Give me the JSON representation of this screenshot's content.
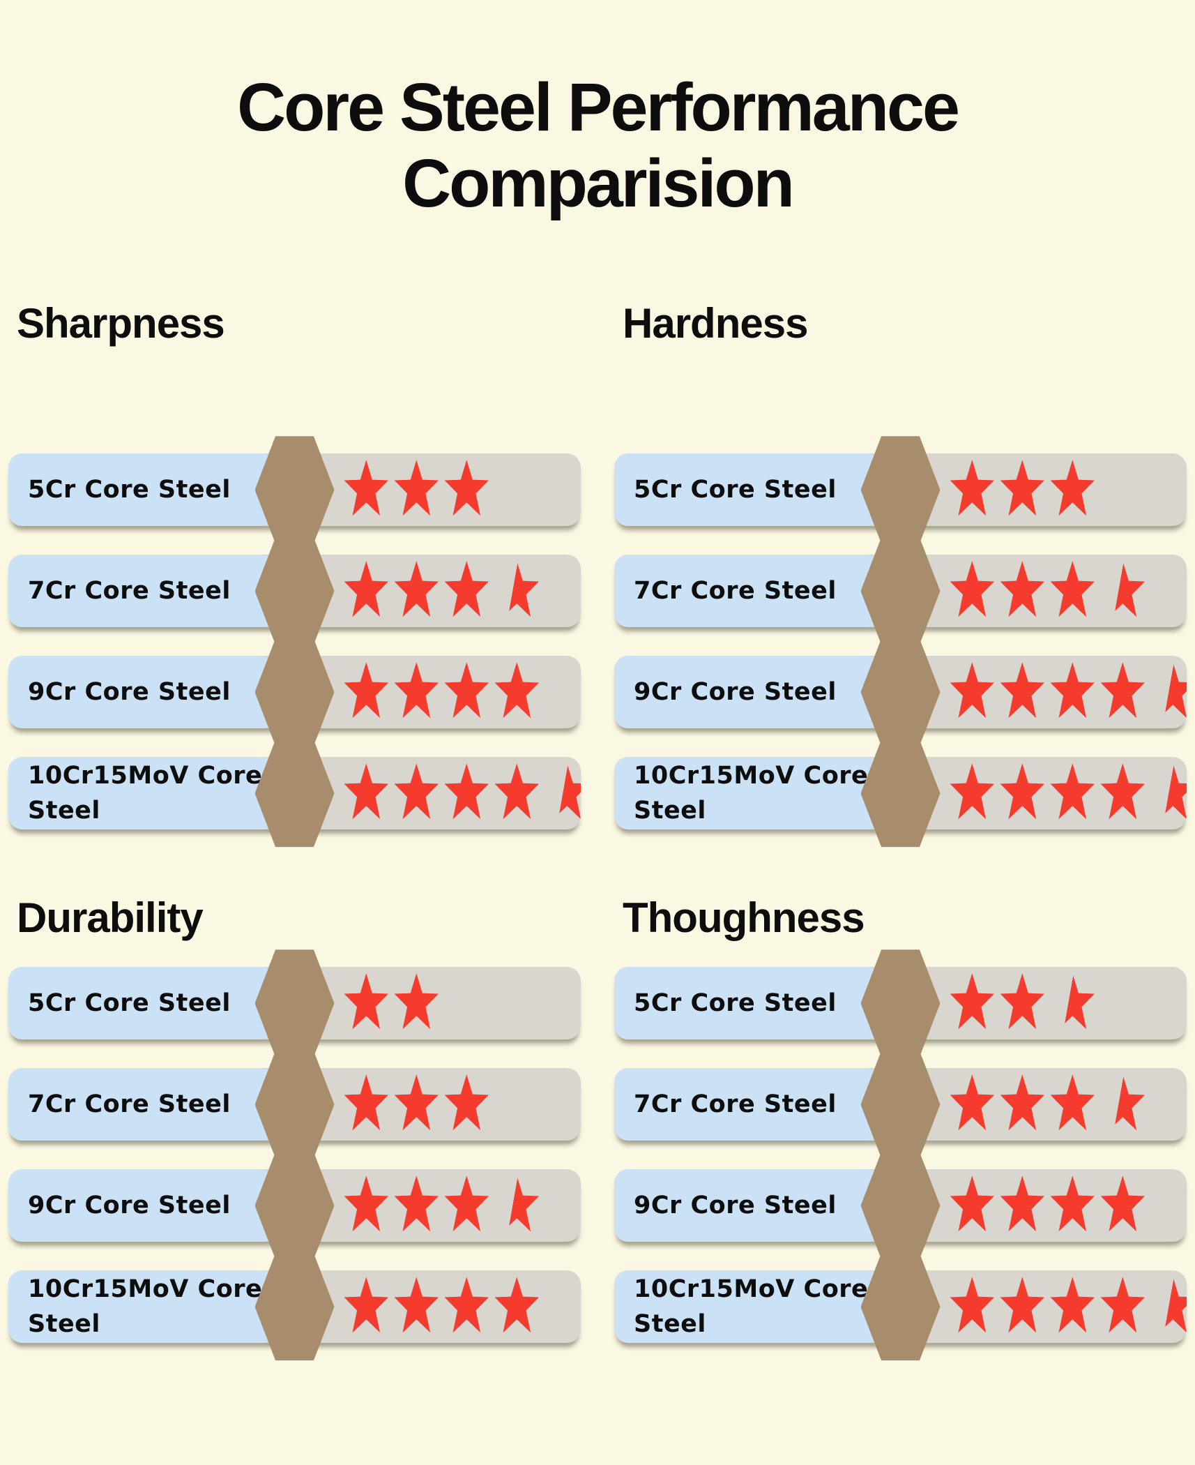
{
  "title": "Core Steel Performance Comparision",
  "colors": {
    "background": "#FAF8E3",
    "label_bar": "#CBE1F5",
    "hexagon": "#A88D6C",
    "rating_bar": "#D9D6D0",
    "star": "#F43B2E",
    "text": "#0D0D0D"
  },
  "icons": {
    "divider": "hexagon-icon",
    "rating_full": "star-icon-full",
    "rating_half": "star-icon-half"
  },
  "rating_scale_max": 5,
  "sections": [
    {
      "title": "Sharpness",
      "rows": [
        {
          "label": "5Cr Core Steel",
          "rating": 3
        },
        {
          "label": "7Cr Core Steel",
          "rating": 3.5
        },
        {
          "label": "9Cr Core Steel",
          "rating": 4
        },
        {
          "label": "10Cr15MoV Core Steel",
          "rating": 4.5
        }
      ]
    },
    {
      "title": "Hardness",
      "rows": [
        {
          "label": "5Cr Core Steel",
          "rating": 3
        },
        {
          "label": "7Cr Core Steel",
          "rating": 3.5
        },
        {
          "label": "9Cr Core Steel",
          "rating": 4.5
        },
        {
          "label": "10Cr15MoV Core Steel",
          "rating": 4.5
        }
      ]
    },
    {
      "title": "Durability",
      "rows": [
        {
          "label": "5Cr Core Steel",
          "rating": 2
        },
        {
          "label": "7Cr Core Steel",
          "rating": 3
        },
        {
          "label": "9Cr Core Steel",
          "rating": 3.5
        },
        {
          "label": "10Cr15MoV Core Steel",
          "rating": 4
        }
      ]
    },
    {
      "title": "Thoughness",
      "rows": [
        {
          "label": "5Cr Core Steel",
          "rating": 2.5
        },
        {
          "label": "7Cr Core Steel",
          "rating": 3.5
        },
        {
          "label": "9Cr Core Steel",
          "rating": 4
        },
        {
          "label": "10Cr15MoV Core Steel",
          "rating": 4.5
        }
      ]
    }
  ],
  "chart_data": {
    "type": "table",
    "title": "Core Steel Performance Comparision",
    "categories": [
      "5Cr Core Steel",
      "7Cr Core Steel",
      "9Cr Core Steel",
      "10Cr15MoV Core Steel"
    ],
    "series": [
      {
        "name": "Sharpness",
        "values": [
          3,
          3.5,
          4,
          4.5
        ]
      },
      {
        "name": "Hardness",
        "values": [
          3,
          3.5,
          4.5,
          4.5
        ]
      },
      {
        "name": "Durability",
        "values": [
          2,
          3,
          3.5,
          4
        ]
      },
      {
        "name": "Thoughness",
        "values": [
          2.5,
          3.5,
          4,
          4.5
        ]
      }
    ],
    "unit": "stars",
    "rating_scale": [
      0,
      5
    ],
    "legend_position": "none",
    "grid": false
  }
}
